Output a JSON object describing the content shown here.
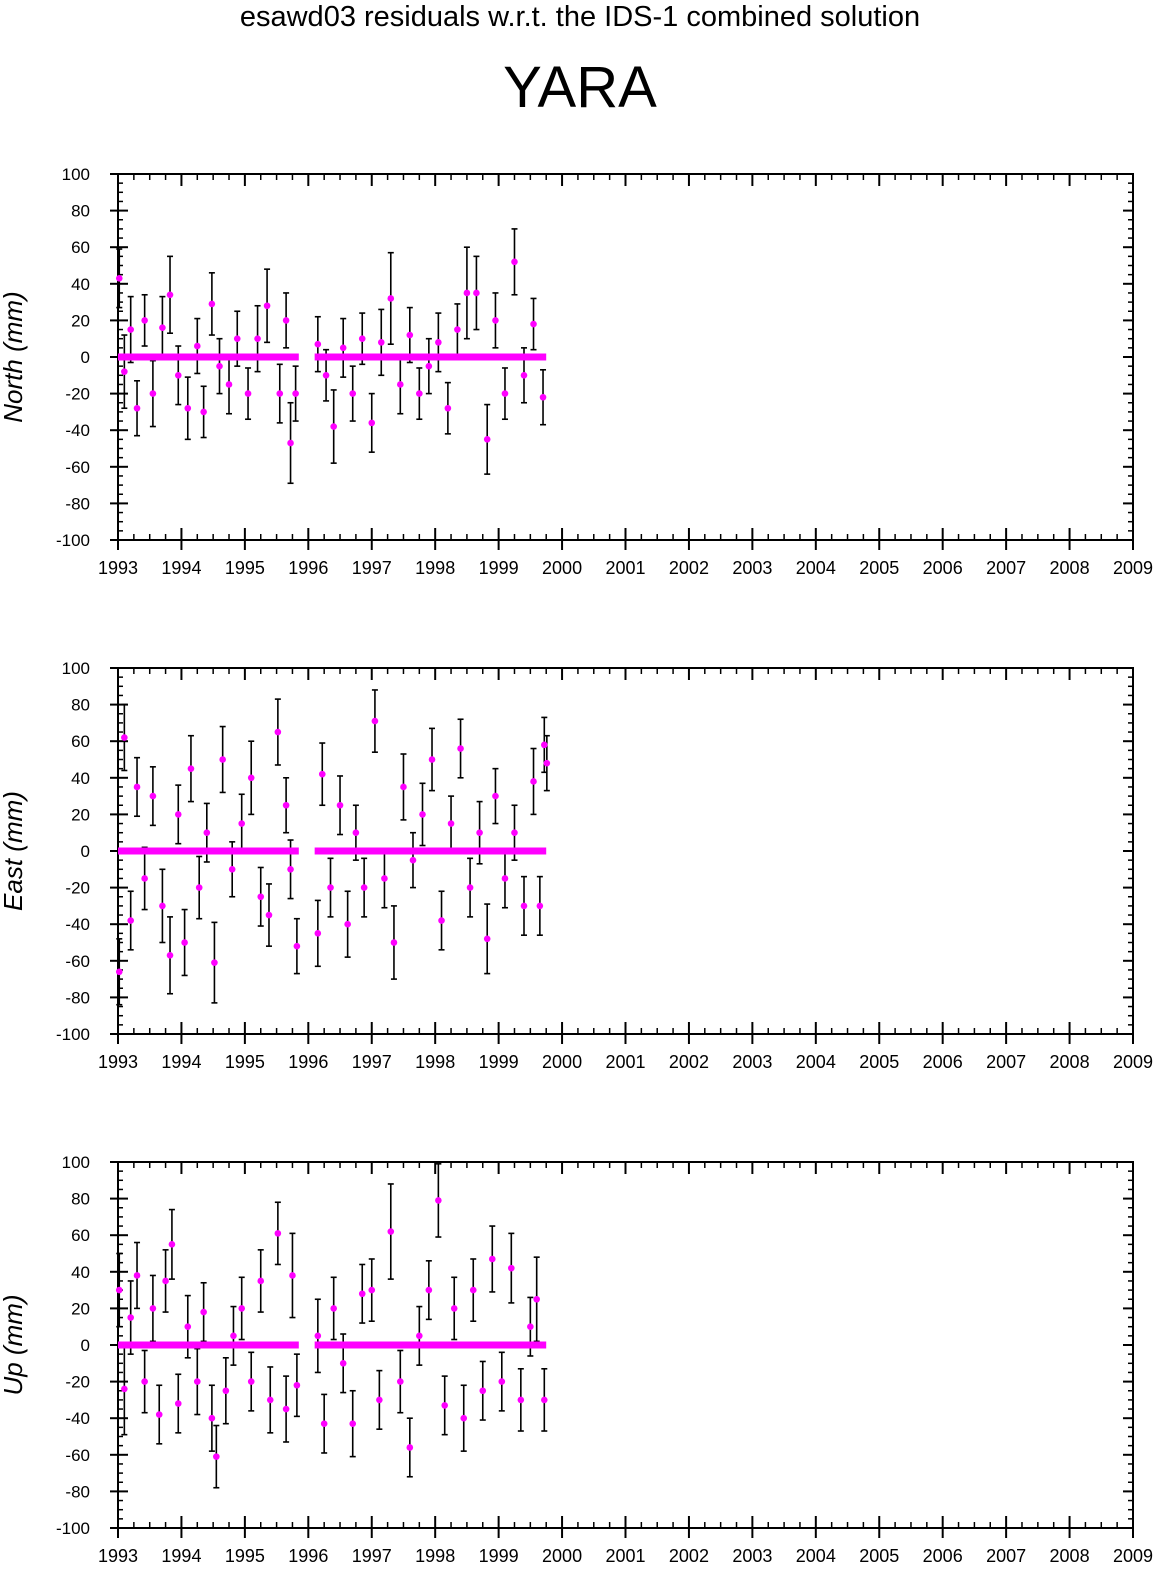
{
  "title": "esawd03 residuals w.r.t. the IDS-1 combined solution",
  "station": "YARA",
  "colors": {
    "residual": "#ff00ff",
    "errorbar": "#000000",
    "axis": "#000000"
  },
  "chart_data": [
    {
      "type": "scatter",
      "ylabel": "North (mm)",
      "xlim": [
        1993,
        2009
      ],
      "ylim": [
        -100,
        100
      ],
      "yticks": [
        -100,
        -80,
        -60,
        -40,
        -20,
        0,
        20,
        40,
        60,
        80,
        100
      ],
      "xticks": [
        1993,
        1994,
        1995,
        1996,
        1997,
        1998,
        1999,
        2000,
        2001,
        2002,
        2003,
        2004,
        2005,
        2006,
        2007,
        2008,
        2009
      ],
      "segments": [
        {
          "x_start": 1993.0,
          "x_end": 1995.85
        },
        {
          "x_start": 1996.1,
          "x_end": 1999.75
        }
      ],
      "series": [
        {
          "points": [
            [
              1993.02,
              43,
              16
            ],
            [
              1993.1,
              -8,
              20
            ],
            [
              1993.2,
              15,
              18
            ],
            [
              1993.3,
              -28,
              15
            ],
            [
              1993.42,
              20,
              14
            ],
            [
              1993.55,
              -20,
              18
            ],
            [
              1993.7,
              16,
              17
            ],
            [
              1993.82,
              34,
              21
            ],
            [
              1993.95,
              -10,
              16
            ],
            [
              1994.1,
              -28,
              17
            ],
            [
              1994.25,
              6,
              15
            ],
            [
              1994.35,
              -30,
              14
            ],
            [
              1994.48,
              29,
              17
            ],
            [
              1994.6,
              -5,
              15
            ],
            [
              1994.75,
              -15,
              16
            ],
            [
              1994.88,
              10,
              15
            ],
            [
              1995.05,
              -20,
              14
            ],
            [
              1995.2,
              10,
              18
            ],
            [
              1995.35,
              28,
              20
            ],
            [
              1995.55,
              -20,
              16
            ],
            [
              1995.65,
              20,
              15
            ],
            [
              1995.72,
              -47,
              22
            ],
            [
              1995.8,
              -20,
              15
            ],
            [
              1996.15,
              7,
              15
            ],
            [
              1996.28,
              -10,
              14
            ],
            [
              1996.4,
              -38,
              20
            ],
            [
              1996.55,
              5,
              16
            ],
            [
              1996.7,
              -20,
              15
            ],
            [
              1996.85,
              10,
              14
            ],
            [
              1997.0,
              -36,
              16
            ],
            [
              1997.15,
              8,
              18
            ],
            [
              1997.3,
              32,
              25
            ],
            [
              1997.45,
              -15,
              16
            ],
            [
              1997.6,
              12,
              15
            ],
            [
              1997.75,
              -20,
              14
            ],
            [
              1997.9,
              -5,
              15
            ],
            [
              1998.05,
              8,
              16
            ],
            [
              1998.2,
              -28,
              14
            ],
            [
              1998.35,
              15,
              14
            ],
            [
              1998.5,
              35,
              25
            ],
            [
              1998.65,
              35,
              20
            ],
            [
              1998.82,
              -45,
              19
            ],
            [
              1998.95,
              20,
              15
            ],
            [
              1999.1,
              -20,
              14
            ],
            [
              1999.25,
              52,
              18
            ],
            [
              1999.4,
              -10,
              15
            ],
            [
              1999.55,
              18,
              14
            ],
            [
              1999.7,
              -22,
              15
            ]
          ]
        }
      ]
    },
    {
      "type": "scatter",
      "ylabel": "East (mm)",
      "xlim": [
        1993,
        2009
      ],
      "ylim": [
        -100,
        100
      ],
      "yticks": [
        -100,
        -80,
        -60,
        -40,
        -20,
        0,
        20,
        40,
        60,
        80,
        100
      ],
      "xticks": [
        1993,
        1994,
        1995,
        1996,
        1997,
        1998,
        1999,
        2000,
        2001,
        2002,
        2003,
        2004,
        2005,
        2006,
        2007,
        2008,
        2009
      ],
      "segments": [
        {
          "x_start": 1993.0,
          "x_end": 1995.85
        },
        {
          "x_start": 1996.1,
          "x_end": 1999.75
        }
      ],
      "series": [
        {
          "points": [
            [
              1993.02,
              -66,
              18
            ],
            [
              1993.1,
              62,
              18
            ],
            [
              1993.2,
              -38,
              16
            ],
            [
              1993.3,
              35,
              16
            ],
            [
              1993.42,
              -15,
              17
            ],
            [
              1993.55,
              30,
              16
            ],
            [
              1993.7,
              -30,
              20
            ],
            [
              1993.82,
              -57,
              21
            ],
            [
              1993.95,
              20,
              16
            ],
            [
              1994.05,
              -50,
              18
            ],
            [
              1994.15,
              45,
              18
            ],
            [
              1994.28,
              -20,
              17
            ],
            [
              1994.4,
              10,
              16
            ],
            [
              1994.52,
              -61,
              22
            ],
            [
              1994.65,
              50,
              18
            ],
            [
              1994.8,
              -10,
              15
            ],
            [
              1994.95,
              15,
              16
            ],
            [
              1995.1,
              40,
              20
            ],
            [
              1995.25,
              -25,
              16
            ],
            [
              1995.38,
              -35,
              17
            ],
            [
              1995.52,
              65,
              18
            ],
            [
              1995.65,
              25,
              15
            ],
            [
              1995.72,
              -10,
              16
            ],
            [
              1995.82,
              -52,
              15
            ],
            [
              1996.15,
              -45,
              18
            ],
            [
              1996.22,
              42,
              17
            ],
            [
              1996.35,
              -20,
              16
            ],
            [
              1996.5,
              25,
              16
            ],
            [
              1996.62,
              -40,
              18
            ],
            [
              1996.75,
              10,
              15
            ],
            [
              1996.88,
              -20,
              16
            ],
            [
              1997.05,
              71,
              17
            ],
            [
              1997.2,
              -15,
              16
            ],
            [
              1997.35,
              -50,
              20
            ],
            [
              1997.5,
              35,
              18
            ],
            [
              1997.65,
              -5,
              15
            ],
            [
              1997.8,
              20,
              17
            ],
            [
              1997.95,
              50,
              17
            ],
            [
              1998.1,
              -38,
              16
            ],
            [
              1998.25,
              15,
              15
            ],
            [
              1998.4,
              56,
              16
            ],
            [
              1998.55,
              -20,
              16
            ],
            [
              1998.7,
              10,
              17
            ],
            [
              1998.82,
              -48,
              19
            ],
            [
              1998.95,
              30,
              15
            ],
            [
              1999.1,
              -15,
              16
            ],
            [
              1999.25,
              10,
              15
            ],
            [
              1999.4,
              -30,
              16
            ],
            [
              1999.55,
              38,
              18
            ],
            [
              1999.65,
              -30,
              16
            ],
            [
              1999.72,
              58,
              15
            ],
            [
              1999.76,
              48,
              15
            ]
          ]
        }
      ]
    },
    {
      "type": "scatter",
      "ylabel": "Up (mm)",
      "xlim": [
        1993,
        2009
      ],
      "ylim": [
        -100,
        100
      ],
      "yticks": [
        -100,
        -80,
        -60,
        -40,
        -20,
        0,
        20,
        40,
        60,
        80,
        100
      ],
      "xticks": [
        1993,
        1994,
        1995,
        1996,
        1997,
        1998,
        1999,
        2000,
        2001,
        2002,
        2003,
        2004,
        2005,
        2006,
        2007,
        2008,
        2009
      ],
      "segments": [
        {
          "x_start": 1993.0,
          "x_end": 1995.85
        },
        {
          "x_start": 1996.1,
          "x_end": 1999.75
        }
      ],
      "series": [
        {
          "points": [
            [
              1993.02,
              30,
              20
            ],
            [
              1993.1,
              -24,
              25
            ],
            [
              1993.2,
              15,
              20
            ],
            [
              1993.3,
              38,
              18
            ],
            [
              1993.42,
              -20,
              17
            ],
            [
              1993.55,
              20,
              18
            ],
            [
              1993.65,
              -38,
              16
            ],
            [
              1993.75,
              35,
              17
            ],
            [
              1993.85,
              55,
              19
            ],
            [
              1993.95,
              -32,
              16
            ],
            [
              1994.1,
              10,
              17
            ],
            [
              1994.25,
              -20,
              18
            ],
            [
              1994.35,
              18,
              16
            ],
            [
              1994.48,
              -40,
              18
            ],
            [
              1994.55,
              -61,
              17
            ],
            [
              1994.7,
              -25,
              18
            ],
            [
              1994.82,
              5,
              16
            ],
            [
              1994.95,
              20,
              17
            ],
            [
              1995.1,
              -20,
              16
            ],
            [
              1995.25,
              35,
              17
            ],
            [
              1995.4,
              -30,
              18
            ],
            [
              1995.52,
              61,
              17
            ],
            [
              1995.65,
              -35,
              18
            ],
            [
              1995.75,
              38,
              23
            ],
            [
              1995.82,
              -22,
              17
            ],
            [
              1996.15,
              5,
              20
            ],
            [
              1996.25,
              -43,
              16
            ],
            [
              1996.4,
              20,
              17
            ],
            [
              1996.55,
              -10,
              16
            ],
            [
              1996.7,
              -43,
              18
            ],
            [
              1996.85,
              28,
              16
            ],
            [
              1997.0,
              30,
              17
            ],
            [
              1997.12,
              -30,
              16
            ],
            [
              1997.3,
              62,
              26
            ],
            [
              1997.45,
              -20,
              17
            ],
            [
              1997.6,
              -56,
              16
            ],
            [
              1997.75,
              5,
              16
            ],
            [
              1997.9,
              30,
              16
            ],
            [
              1998.05,
              79,
              20
            ],
            [
              1998.15,
              -33,
              16
            ],
            [
              1998.3,
              20,
              17
            ],
            [
              1998.45,
              -40,
              18
            ],
            [
              1998.6,
              30,
              17
            ],
            [
              1998.75,
              -25,
              16
            ],
            [
              1998.9,
              47,
              18
            ],
            [
              1999.05,
              -20,
              16
            ],
            [
              1999.2,
              42,
              19
            ],
            [
              1999.35,
              -30,
              17
            ],
            [
              1999.5,
              10,
              16
            ],
            [
              1999.6,
              25,
              23
            ],
            [
              1999.72,
              -30,
              17
            ]
          ]
        }
      ]
    }
  ]
}
